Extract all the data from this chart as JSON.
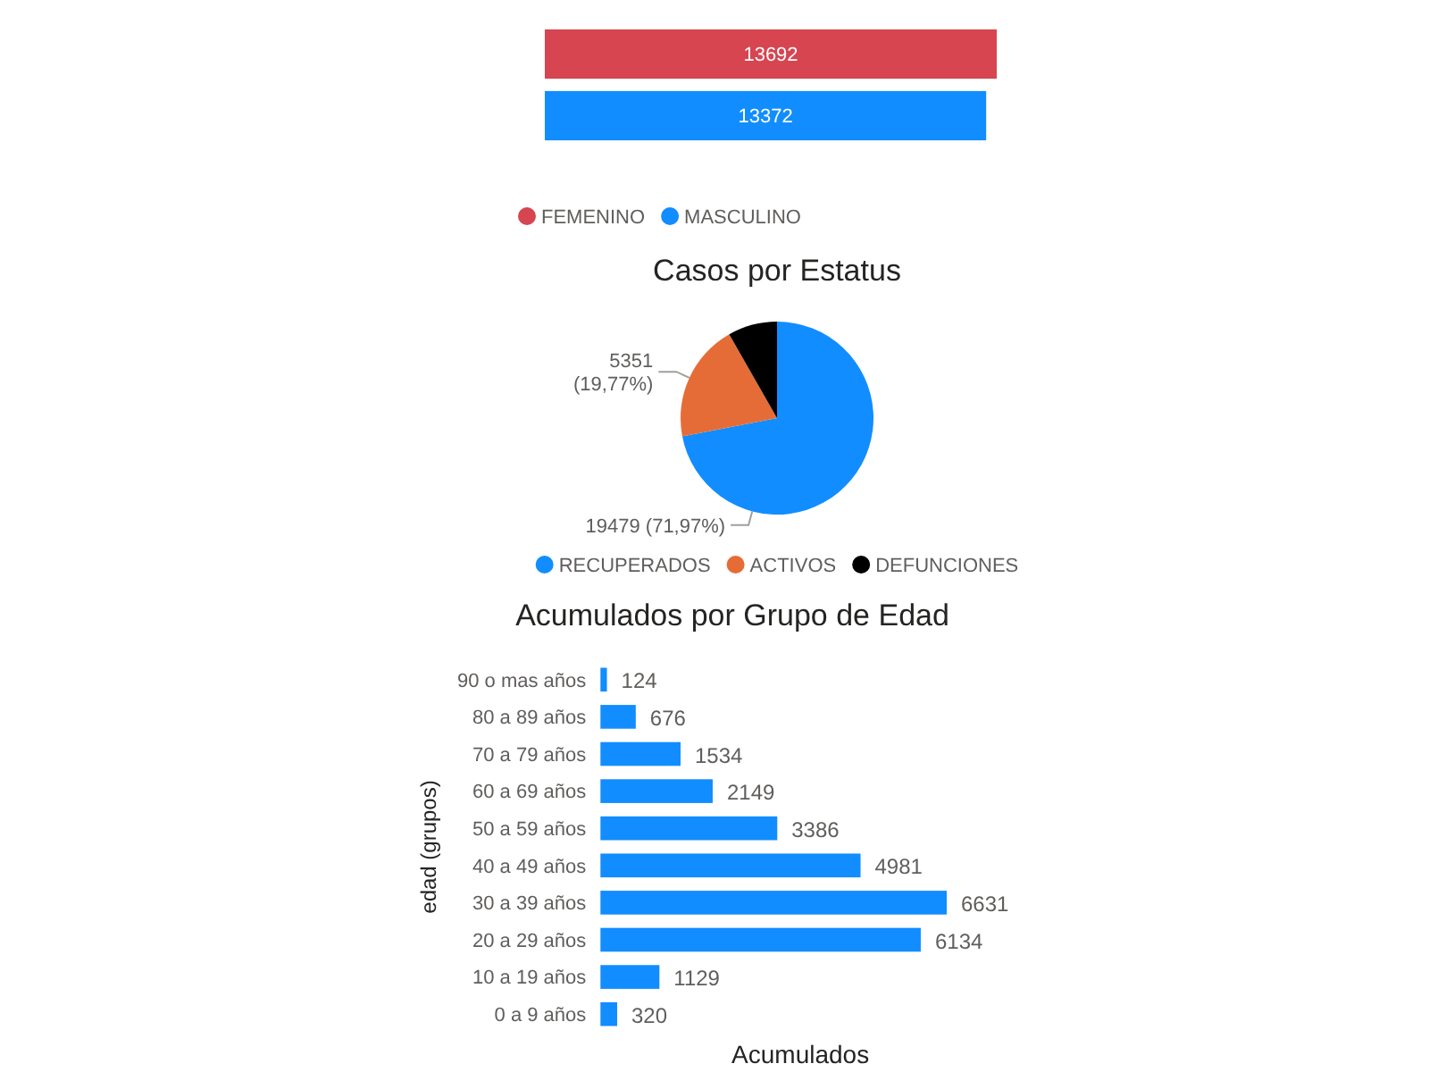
{
  "chart_data": [
    {
      "type": "bar",
      "orientation": "horizontal",
      "categories": [
        null
      ],
      "series": [
        {
          "name": "FEMENINO",
          "color": "#d64550",
          "values": [
            13692
          ]
        },
        {
          "name": "MASCULINO",
          "color": "#118dff",
          "values": [
            13372
          ]
        }
      ],
      "data_labels": true,
      "legend": "bottom left"
    },
    {
      "type": "pie",
      "title": "Casos por Estatus",
      "categories": [
        "RECUPERADOS",
        "ACTIVOS",
        "DEFUNCIONES"
      ],
      "values": [
        19479,
        5351,
        2234
      ],
      "colors": [
        "#118dff",
        "#e66c37",
        "#000000"
      ],
      "value_labels": [
        "19479 (71,97%)",
        "5351 (19,77%)",
        null
      ],
      "legend": "bottom"
    },
    {
      "type": "bar",
      "orientation": "horizontal",
      "title": "Acumulados por Grupo de Edad",
      "xlabel": "Acumulados",
      "ylabel": "edad (grupos)",
      "categories": [
        "90 o mas años",
        "80 a 89 años",
        "70 a 79 años",
        "60 a 69 años",
        "50 a 59 años",
        "40 a 49 años",
        "30 a 39 años",
        "20 a 29 años",
        "10 a 19 años",
        "0 a 9 años"
      ],
      "values": [
        124,
        676,
        1534,
        2149,
        3386,
        4981,
        6631,
        6134,
        1129,
        320
      ],
      "color": "#118dff",
      "data_labels": true
    }
  ]
}
